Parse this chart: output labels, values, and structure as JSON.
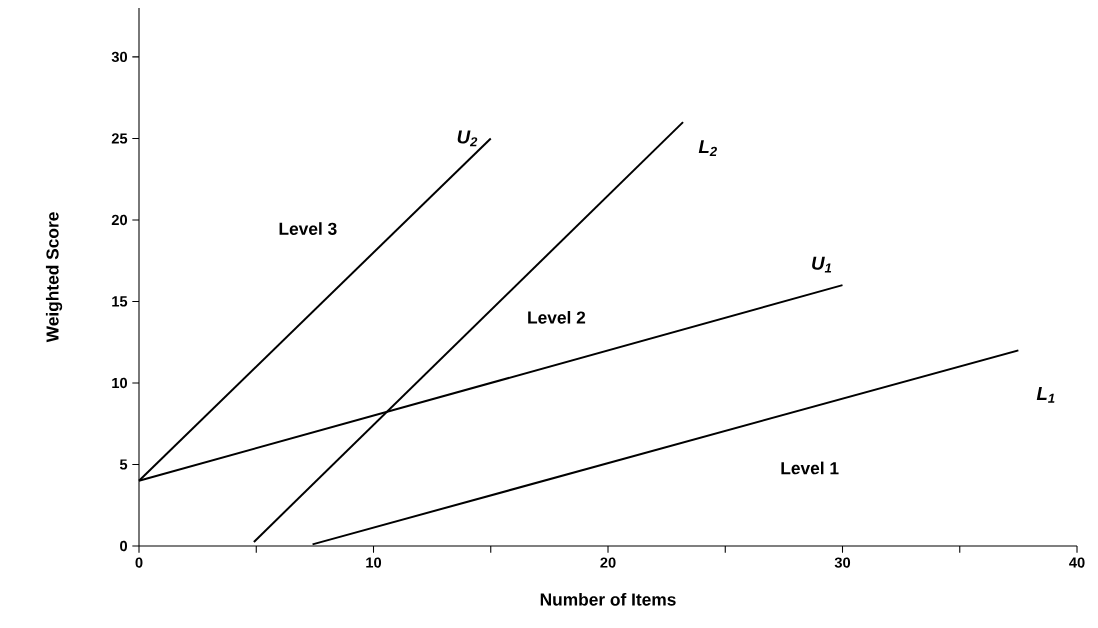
{
  "chart_data": {
    "type": "line",
    "xlabel": "Number of Items",
    "ylabel": "Weighted Score",
    "xlim": [
      0,
      40
    ],
    "ylim": [
      0,
      33
    ],
    "xticks": [
      0,
      {
        "value": 5,
        "label": null
      },
      10,
      {
        "value": 15,
        "label": null
      },
      20,
      {
        "value": 25,
        "label": null
      },
      30,
      {
        "value": 35,
        "label": null
      },
      40
    ],
    "yticks": [
      0,
      5,
      10,
      15,
      20,
      25,
      30
    ],
    "series": [
      {
        "name": "U$_{2}$",
        "color": "#000000",
        "x": [
          0,
          15
        ],
        "values": [
          4,
          25
        ]
      },
      {
        "name": "L$_{2}$",
        "color": "#000000",
        "x": [
          4.9,
          23.2
        ],
        "values": [
          0.25,
          26
        ]
      },
      {
        "name": "U$_{1}$",
        "color": "#000000",
        "x": [
          0,
          30
        ],
        "values": [
          4,
          16
        ]
      },
      {
        "name": "L$_{1}$",
        "color": "#000000",
        "x": [
          7.4,
          37.5
        ],
        "values": [
          0.1,
          12
        ]
      }
    ],
    "annotations": [
      "Level 3",
      "Level 2",
      "Level 1"
    ],
    "grid": false,
    "marker": "none",
    "line_style": "solid"
  }
}
